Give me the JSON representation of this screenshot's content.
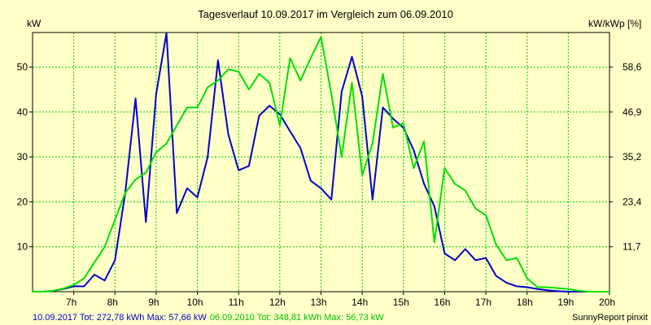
{
  "chart_data": {
    "type": "line",
    "title": "Tagesverlauf 10.09.2017 im Vergleich zum 06.09.2010",
    "ylabel_left": "kW",
    "ylabel_right": "kW/kWp [%]",
    "x_ticks": [
      "7h",
      "8h",
      "9h",
      "10h",
      "11h",
      "12h",
      "13h",
      "14h",
      "15h",
      "16h",
      "17h",
      "18h",
      "19h",
      "20h"
    ],
    "y_left_ticks": [
      10,
      20,
      30,
      40,
      50
    ],
    "y_right_ticks": [
      "11,7",
      "23,4",
      "35,2",
      "46,9",
      "58,6"
    ],
    "xlim": [
      6,
      20
    ],
    "ylim": [
      0,
      57.7
    ],
    "grid": true,
    "series": [
      {
        "color": "#0000cc",
        "x": [
          6,
          6.25,
          6.5,
          6.75,
          7,
          7.25,
          7.5,
          7.75,
          8,
          8.25,
          8.5,
          8.75,
          9,
          9.25,
          9.5,
          9.75,
          10,
          10.25,
          10.5,
          10.75,
          11,
          11.25,
          11.5,
          11.75,
          12,
          12.25,
          12.5,
          12.75,
          13,
          13.25,
          13.5,
          13.75,
          14,
          14.25,
          14.5,
          14.75,
          15,
          15.25,
          15.5,
          15.75,
          16,
          16.25,
          16.5,
          16.75,
          17,
          17.25,
          17.5,
          17.75,
          18,
          18.25,
          18.5,
          18.75,
          19,
          19.25,
          19.5,
          19.75,
          20
        ],
        "y": [
          0,
          0,
          0.2,
          0.6,
          1.2,
          1.2,
          3.8,
          2.5,
          7.0,
          22,
          43,
          15.5,
          44,
          57.6,
          17.5,
          23,
          21,
          30,
          51.5,
          35,
          27,
          28,
          39.2,
          41.4,
          39.5,
          35.7,
          32,
          24.7,
          23,
          20.5,
          44.5,
          52.3,
          43.5,
          20.5,
          41,
          38.5,
          36.5,
          31.5,
          24,
          19,
          8.5,
          7,
          9.5,
          7,
          7.5,
          3.5,
          2,
          1.2,
          1,
          0.6,
          0.3,
          0.1,
          0,
          0,
          0,
          0,
          0
        ]
      },
      {
        "color": "#00e000",
        "x": [
          6,
          6.25,
          6.5,
          6.75,
          7,
          7.25,
          7.5,
          7.75,
          8,
          8.25,
          8.5,
          8.75,
          9,
          9.25,
          9.5,
          9.75,
          10,
          10.25,
          10.5,
          10.75,
          11,
          11.25,
          11.5,
          11.75,
          12,
          12.25,
          12.5,
          12.75,
          13,
          13.25,
          13.5,
          13.75,
          14,
          14.25,
          14.5,
          14.75,
          15,
          15.25,
          15.5,
          15.75,
          16,
          16.25,
          16.5,
          16.75,
          17,
          17.25,
          17.5,
          17.75,
          18,
          18.25,
          18.5,
          18.75,
          19,
          19.25,
          19.5,
          19.75,
          20
        ],
        "y": [
          0,
          0,
          0.2,
          0.7,
          1.5,
          3,
          6.5,
          10,
          16,
          22,
          25,
          26.5,
          31,
          33,
          37,
          41,
          41,
          45.5,
          47,
          49.5,
          49,
          45,
          48.5,
          46.5,
          37,
          52,
          47,
          52,
          56.7,
          44,
          30,
          46.5,
          26,
          33,
          48.5,
          36.5,
          37.5,
          27.5,
          33.5,
          11,
          27.5,
          24,
          22.5,
          18.5,
          17,
          10.5,
          7,
          7.5,
          3,
          1,
          1,
          0.8,
          0.6,
          0.2,
          0,
          0,
          0
        ]
      }
    ]
  },
  "footer": {
    "left_part1": "10.09.2017 Tot: 272,78 kWh Max: 57,66 kW",
    "left_part2": "06.09.2010 Tot: 348,81 kWh Max: 56,73 kW",
    "right": "SunnyReport pinxit"
  }
}
